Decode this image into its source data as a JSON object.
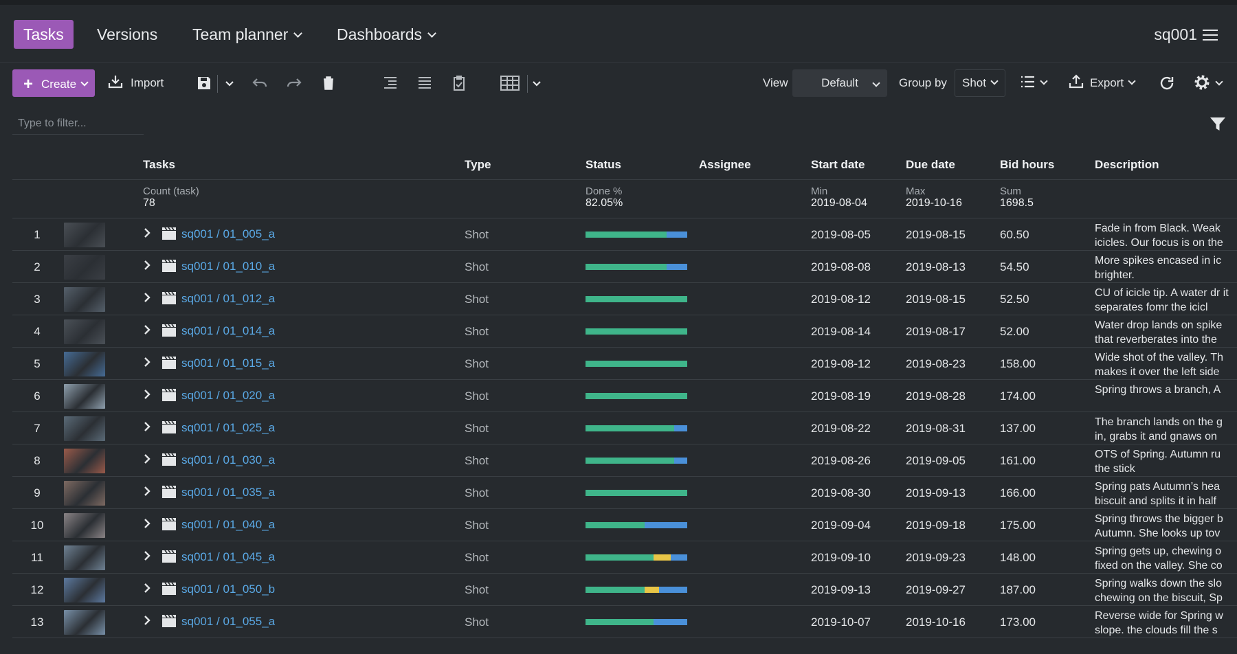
{
  "colors": {
    "accent": "#9b59b6",
    "link": "#5aa9e6",
    "status_done": "#3fb58a",
    "status_in_progress": "#e8c547",
    "status_todo": "#4a90d9",
    "background": "#262a2e"
  },
  "nav": {
    "tabs": [
      {
        "label": "Tasks",
        "active": true
      },
      {
        "label": "Versions",
        "active": false
      },
      {
        "label": "Team planner",
        "active": false
      },
      {
        "label": "Dashboards",
        "active": false
      }
    ],
    "project": "sq001",
    "menu_icon": "hamburger-icon"
  },
  "toolbar": {
    "create_label": "Create",
    "import_label": "Import",
    "view_label": "View",
    "view_value": "Default",
    "group_by_label": "Group by",
    "group_by_value": "Shot",
    "export_label": "Export",
    "icons": [
      "save-icon",
      "undo-icon",
      "redo-icon",
      "trash-icon",
      "indent-icon",
      "list-icon",
      "checklist-icon",
      "grid-icon",
      "list-view-icon",
      "export-icon",
      "refresh-icon",
      "gear-icon"
    ]
  },
  "filter": {
    "placeholder": "Type to filter...",
    "value": ""
  },
  "table": {
    "columns": [
      "Tasks",
      "Type",
      "Status",
      "Assignee",
      "Start date",
      "Due date",
      "Bid hours",
      "Description"
    ],
    "aggregates": {
      "tasks_label": "Count (task)",
      "tasks_value": "78",
      "status_label": "Done %",
      "status_value": "82.05%",
      "start_label": "Min",
      "start_value": "2019-08-04",
      "due_label": "Max",
      "due_value": "2019-10-16",
      "bid_label": "Sum",
      "bid_value": "1698.5"
    },
    "rows": [
      {
        "num": "1",
        "name": "sq001 / 01_005_a",
        "type": "Shot",
        "status": [
          0.8,
          0,
          0.2
        ],
        "start": "2019-08-05",
        "due": "2019-08-15",
        "bid": "60.50",
        "desc": "Fade in from Black. Weak icicles. Our focus is on the",
        "thumb": "#4a4f55"
      },
      {
        "num": "2",
        "name": "sq001 / 01_010_a",
        "type": "Shot",
        "status": [
          0.8,
          0,
          0.2
        ],
        "start": "2019-08-08",
        "due": "2019-08-13",
        "bid": "54.50",
        "desc": "More spikes encased in ic brighter.",
        "thumb": "#3b3f45"
      },
      {
        "num": "3",
        "name": "sq001 / 01_012_a",
        "type": "Shot",
        "status": [
          1,
          0,
          0
        ],
        "start": "2019-08-12",
        "due": "2019-08-15",
        "bid": "52.50",
        "desc": "CU of icicle tip. A water dr it separates fomr the icicl",
        "thumb": "#55606b"
      },
      {
        "num": "4",
        "name": "sq001 / 01_014_a",
        "type": "Shot",
        "status": [
          1,
          0,
          0
        ],
        "start": "2019-08-14",
        "due": "2019-08-17",
        "bid": "52.00",
        "desc": "Water drop lands on spike that reverberates into the",
        "thumb": "#4b5158"
      },
      {
        "num": "5",
        "name": "sq001 / 01_015_a",
        "type": "Shot",
        "status": [
          1,
          0,
          0
        ],
        "start": "2019-08-12",
        "due": "2019-08-23",
        "bid": "158.00",
        "desc": "Wide shot of the valley. Th makes it over the left side",
        "thumb": "#466c96"
      },
      {
        "num": "6",
        "name": "sq001 / 01_020_a",
        "type": "Shot",
        "status": [
          1,
          0,
          0
        ],
        "start": "2019-08-19",
        "due": "2019-08-28",
        "bid": "174.00",
        "desc": "Spring throws a branch, A",
        "thumb": "#8fa0ae"
      },
      {
        "num": "7",
        "name": "sq001 / 01_025_a",
        "type": "Shot",
        "status": [
          0.87,
          0,
          0.13
        ],
        "start": "2019-08-22",
        "due": "2019-08-31",
        "bid": "137.00",
        "desc": "The branch lands on the g in, grabs it and gnaws on",
        "thumb": "#5b6b78"
      },
      {
        "num": "8",
        "name": "sq001 / 01_030_a",
        "type": "Shot",
        "status": [
          0.87,
          0,
          0.13
        ],
        "start": "2019-08-26",
        "due": "2019-09-05",
        "bid": "161.00",
        "desc": "OTS of Spring. Autumn ru the stick",
        "thumb": "#9a5a4a"
      },
      {
        "num": "9",
        "name": "sq001 / 01_035_a",
        "type": "Shot",
        "status": [
          1,
          0,
          0
        ],
        "start": "2019-08-30",
        "due": "2019-09-13",
        "bid": "166.00",
        "desc": "Spring pats Autumn’s hea biscuit and splits it in half",
        "thumb": "#7e6a62"
      },
      {
        "num": "10",
        "name": "sq001 / 01_040_a",
        "type": "Shot",
        "status": [
          0.58,
          0,
          0.42
        ],
        "start": "2019-09-04",
        "due": "2019-09-18",
        "bid": "175.00",
        "desc": "Spring throws the bigger b Autumn. She looks up tov",
        "thumb": "#8a8486"
      },
      {
        "num": "11",
        "name": "sq001 / 01_045_a",
        "type": "Shot",
        "status": [
          0.67,
          0.17,
          0.16
        ],
        "start": "2019-09-10",
        "due": "2019-09-23",
        "bid": "148.00",
        "desc": "Spring gets up, chewing o fixed on the valley. She co",
        "thumb": "#6f8294"
      },
      {
        "num": "12",
        "name": "sq001 / 01_050_b",
        "type": "Shot",
        "status": [
          0.58,
          0.14,
          0.28
        ],
        "start": "2019-09-13",
        "due": "2019-09-27",
        "bid": "187.00",
        "desc": "Spring walks down the slo chewing on the biscuit, Sp",
        "thumb": "#5d7aa0"
      },
      {
        "num": "13",
        "name": "sq001 / 01_055_a",
        "type": "Shot",
        "status": [
          0.67,
          0,
          0.33
        ],
        "start": "2019-10-07",
        "due": "2019-10-16",
        "bid": "173.00",
        "desc": "Reverse wide for Spring w slope. the clouds fill the s",
        "thumb": "#7890a8"
      }
    ]
  }
}
